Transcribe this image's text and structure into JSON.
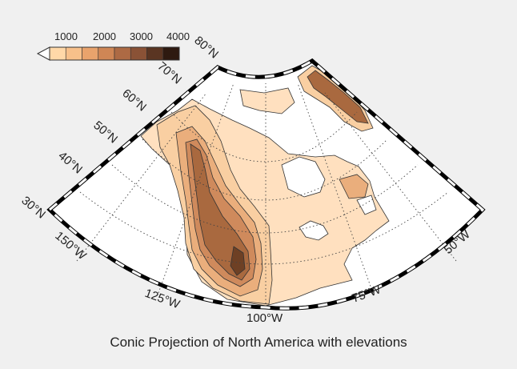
{
  "title": "Conic Projection of North America with elevations",
  "colorbar": {
    "tick_labels": [
      "1000",
      "2000",
      "3000",
      "4000"
    ],
    "colors": [
      "#ffd8a8",
      "#f7c08a",
      "#e9a36c",
      "#cf8655",
      "#ad6a44",
      "#8a5236",
      "#5a3522",
      "#2e1a10"
    ]
  },
  "map": {
    "projection": "conic",
    "land_colors": {
      "lowland": "#ffe0bf",
      "low": "#f9cfa2",
      "mid": "#eaae7c",
      "high": "#cf8a5c",
      "higher": "#a9693f",
      "peak": "#6e4024",
      "water": "#ffffff",
      "frame_dark": "#000000",
      "frame_light": "#ffffff"
    },
    "lat_labels": [
      "30°N",
      "40°N",
      "50°N",
      "60°N",
      "70°N",
      "80°N"
    ],
    "lon_labels": [
      "150°W",
      "125°W",
      "100°W",
      "75°W",
      "50°W"
    ]
  }
}
